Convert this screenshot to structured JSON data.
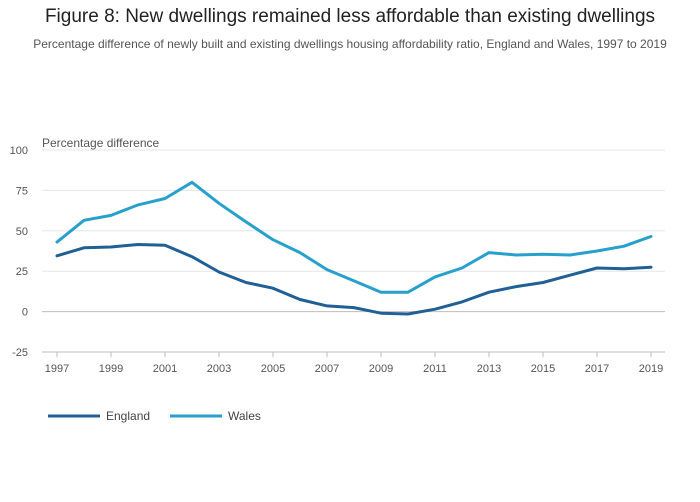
{
  "chart_data": {
    "type": "line",
    "title": "Figure 8: New dwellings remained less affordable than existing dwellings",
    "subtitle": "Percentage difference of newly built and existing dwellings housing affordability ratio, England and Wales, 1997 to 2019",
    "ylabel": "Percentage difference",
    "xlabel": "",
    "ylim": [
      -25,
      100
    ],
    "yticks": [
      -25,
      0,
      25,
      50,
      75,
      100
    ],
    "xlim": [
      1997,
      2019
    ],
    "xticks": [
      1997,
      1999,
      2001,
      2003,
      2005,
      2007,
      2009,
      2011,
      2013,
      2015,
      2017,
      2019
    ],
    "grid": true,
    "legend_position": "bottom-left",
    "x": [
      1997,
      1998,
      1999,
      2000,
      2001,
      2002,
      2003,
      2004,
      2005,
      2006,
      2007,
      2008,
      2009,
      2010,
      2011,
      2012,
      2013,
      2014,
      2015,
      2016,
      2017,
      2018,
      2019
    ],
    "series": [
      {
        "name": "England",
        "color": "#206095",
        "values": [
          34.5,
          39.5,
          40,
          41.5,
          41,
          34,
          24.5,
          18,
          14.5,
          7.5,
          3.5,
          2.5,
          -1,
          -1.5,
          1.5,
          6,
          12,
          15.5,
          18,
          22.5,
          27,
          26.5,
          27.5
        ]
      },
      {
        "name": "Wales",
        "color": "#27a0cc",
        "values": [
          43,
          56.5,
          59.5,
          66,
          70,
          80,
          67,
          55.5,
          44.5,
          36.5,
          26,
          19,
          12,
          12,
          21.5,
          27,
          36.5,
          35,
          35.5,
          35,
          37.5,
          40.5,
          46.5
        ]
      }
    ]
  }
}
